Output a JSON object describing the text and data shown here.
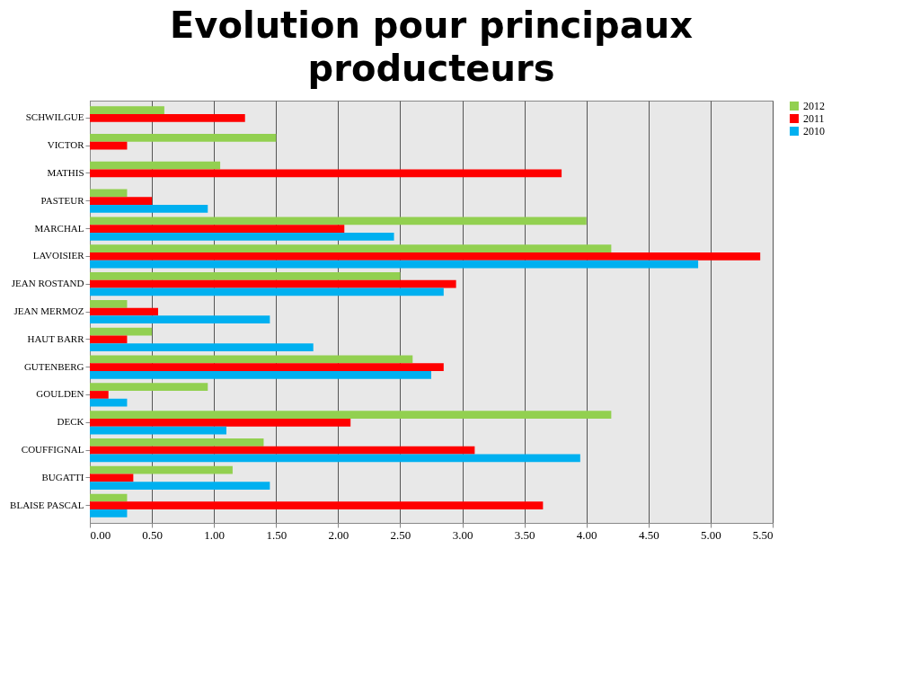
{
  "chart_data": {
    "type": "bar",
    "orientation": "horizontal",
    "title": "Evolution pour principaux producteurs",
    "categories": [
      "SCHWILGUE",
      "VICTOR",
      "MATHIS",
      "PASTEUR",
      "MARCHAL",
      "LAVOISIER",
      "JEAN ROSTAND",
      "JEAN MERMOZ",
      "HAUT BARR",
      "GUTENBERG",
      "GOULDEN",
      "DECK",
      "COUFFIGNAL",
      "BUGATTI",
      "BLAISE PASCAL"
    ],
    "series": [
      {
        "name": "2012",
        "color": "#92d050",
        "values": [
          0.6,
          1.5,
          1.05,
          0.3,
          4.0,
          4.2,
          2.5,
          0.3,
          0.5,
          2.6,
          0.95,
          4.2,
          1.4,
          1.15,
          0.3
        ]
      },
      {
        "name": "2011",
        "color": "#ff0000",
        "values": [
          1.25,
          0.3,
          3.8,
          0.5,
          2.05,
          5.4,
          2.95,
          0.55,
          0.3,
          2.85,
          0.15,
          2.1,
          3.1,
          0.35,
          3.65
        ]
      },
      {
        "name": "2010",
        "color": "#00b0f0",
        "values": [
          0,
          0,
          0,
          0.95,
          2.45,
          4.9,
          2.85,
          1.45,
          1.8,
          2.75,
          0.3,
          1.1,
          3.95,
          1.45,
          0.3
        ]
      }
    ],
    "xlim": [
      0,
      5.5
    ],
    "xticks": [
      {
        "value": 0,
        "label": "0.00"
      },
      {
        "value": 0.5,
        "label": "0.50"
      },
      {
        "value": 1,
        "label": "1.00"
      },
      {
        "value": 1.5,
        "label": "1.50"
      },
      {
        "value": 2,
        "label": "2.00"
      },
      {
        "value": 2.5,
        "label": "2.50"
      },
      {
        "value": 3,
        "label": "3.00"
      },
      {
        "value": 3.5,
        "label": "3.50"
      },
      {
        "value": 4,
        "label": "4.00"
      },
      {
        "value": 4.5,
        "label": "4.50"
      },
      {
        "value": 5,
        "label": "5.00"
      },
      {
        "value": 5.5,
        "label": "5.50"
      }
    ],
    "grid": "x",
    "legend": "right"
  }
}
